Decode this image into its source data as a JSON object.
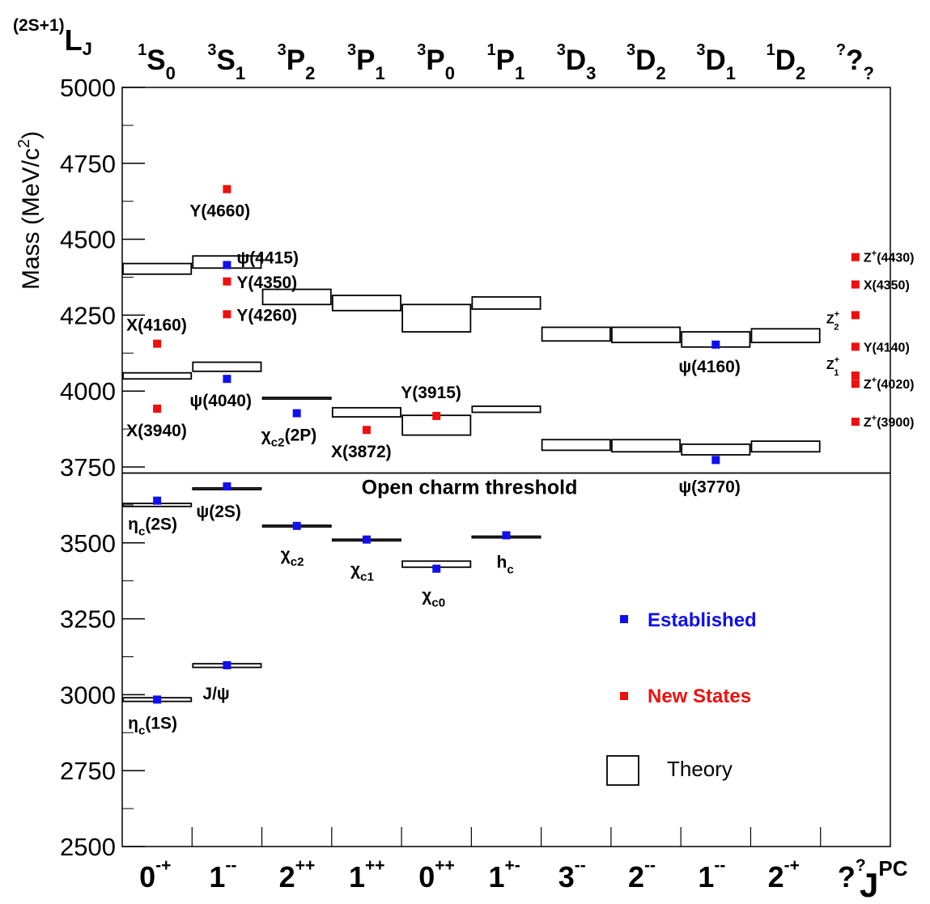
{
  "chart_data": {
    "type": "scatter",
    "title": "",
    "ylabel_main": "Mass (MeV/c",
    "ylabel_sup": "2",
    "ylabel_end": ")",
    "ylim": [
      2500,
      5000
    ],
    "yticks": [
      "2500",
      "2750",
      "3000",
      "3250",
      "3500",
      "3750",
      "4000",
      "4250",
      "4500",
      "4750",
      "5000"
    ],
    "grid": false,
    "top_axis": {
      "label_prefix": "(2S+1)",
      "label_main": "L",
      "label_sub": "J",
      "columns": [
        {
          "sup": "1",
          "main": "S",
          "sub": "0"
        },
        {
          "sup": "3",
          "main": "S",
          "sub": "1"
        },
        {
          "sup": "3",
          "main": "P",
          "sub": "2"
        },
        {
          "sup": "3",
          "main": "P",
          "sub": "1"
        },
        {
          "sup": "3",
          "main": "P",
          "sub": "0"
        },
        {
          "sup": "1",
          "main": "P",
          "sub": "1"
        },
        {
          "sup": "3",
          "main": "D",
          "sub": "3"
        },
        {
          "sup": "3",
          "main": "D",
          "sub": "2"
        },
        {
          "sup": "3",
          "main": "D",
          "sub": "1"
        },
        {
          "sup": "1",
          "main": "D",
          "sub": "2"
        },
        {
          "sup": "?",
          "main": "?",
          "sub": "?"
        }
      ]
    },
    "bottom_axis": {
      "label_main": "J",
      "label_sup": "PC",
      "columns": [
        {
          "main": "0",
          "sup": "-+"
        },
        {
          "main": "1",
          "sup": "--"
        },
        {
          "main": "2",
          "sup": "++"
        },
        {
          "main": "1",
          "sup": "++"
        },
        {
          "main": "0",
          "sup": "++"
        },
        {
          "main": "1",
          "sup": "+-"
        },
        {
          "main": "3",
          "sup": "--"
        },
        {
          "main": "2",
          "sup": "--"
        },
        {
          "main": "1",
          "sup": "--"
        },
        {
          "main": "2",
          "sup": "-+"
        },
        {
          "main": "?",
          "sup": "?"
        }
      ]
    },
    "threshold": {
      "mass": 3730,
      "label": "Open charm threshold"
    },
    "theory_boxes": [
      {
        "col": 0,
        "lo": 4385,
        "hi": 4420
      },
      {
        "col": 0,
        "lo": 4040,
        "hi": 4060
      },
      {
        "col": 0,
        "lo": 3620,
        "hi": 3630
      },
      {
        "col": 0,
        "lo": 2978,
        "hi": 2990
      },
      {
        "col": 1,
        "lo": 4405,
        "hi": 4445
      },
      {
        "col": 1,
        "lo": 4065,
        "hi": 4095
      },
      {
        "col": 1,
        "lo": 3677,
        "hi": 3681
      },
      {
        "col": 1,
        "lo": 3090,
        "hi": 3102
      },
      {
        "col": 2,
        "lo": 4285,
        "hi": 4335
      },
      {
        "col": 2,
        "lo": 3975,
        "hi": 3979
      },
      {
        "col": 2,
        "lo": 3554,
        "hi": 3558
      },
      {
        "col": 3,
        "lo": 4265,
        "hi": 4315
      },
      {
        "col": 3,
        "lo": 3915,
        "hi": 3945
      },
      {
        "col": 3,
        "lo": 3508,
        "hi": 3512
      },
      {
        "col": 4,
        "lo": 4195,
        "hi": 4285
      },
      {
        "col": 4,
        "lo": 3855,
        "hi": 3920
      },
      {
        "col": 4,
        "lo": 3420,
        "hi": 3440
      },
      {
        "col": 5,
        "lo": 4270,
        "hi": 4310
      },
      {
        "col": 5,
        "lo": 3930,
        "hi": 3950
      },
      {
        "col": 5,
        "lo": 3518,
        "hi": 3522
      },
      {
        "col": 6,
        "lo": 4165,
        "hi": 4210
      },
      {
        "col": 6,
        "lo": 3805,
        "hi": 3840
      },
      {
        "col": 7,
        "lo": 4160,
        "hi": 4210
      },
      {
        "col": 7,
        "lo": 3800,
        "hi": 3840
      },
      {
        "col": 8,
        "lo": 4145,
        "hi": 4195
      },
      {
        "col": 8,
        "lo": 3790,
        "hi": 3825
      },
      {
        "col": 9,
        "lo": 4160,
        "hi": 4205
      },
      {
        "col": 9,
        "lo": 3800,
        "hi": 3835
      }
    ],
    "series": [
      {
        "name": "Established",
        "color": "#1010ee",
        "points": [
          {
            "col": 0,
            "mass": 3639,
            "label": "η_c(2S)"
          },
          {
            "col": 0,
            "mass": 2984,
            "label": "η_c(1S)"
          },
          {
            "col": 1,
            "mass": 4415,
            "label": "ψ(4415)"
          },
          {
            "col": 1,
            "mass": 4040,
            "label": "ψ(4040)"
          },
          {
            "col": 1,
            "mass": 3686,
            "label": "ψ(2S)"
          },
          {
            "col": 1,
            "mass": 3097,
            "label": "J/ψ"
          },
          {
            "col": 2,
            "mass": 3927,
            "label": "χ_c2(2P)"
          },
          {
            "col": 2,
            "mass": 3556,
            "label": "χ_c2"
          },
          {
            "col": 3,
            "mass": 3511,
            "label": "χ_c1"
          },
          {
            "col": 4,
            "mass": 3415,
            "label": "χ_c0"
          },
          {
            "col": 5,
            "mass": 3525,
            "label": "h_c"
          },
          {
            "col": 8,
            "mass": 4153,
            "label": "ψ(4160)"
          },
          {
            "col": 8,
            "mass": 3773,
            "label": "ψ(3770)"
          }
        ]
      },
      {
        "name": "New States",
        "color": "#ee1010",
        "points": [
          {
            "col": 0,
            "mass": 4156,
            "label": "X(4160)"
          },
          {
            "col": 0,
            "mass": 3942,
            "label": "X(3940)"
          },
          {
            "col": 1,
            "mass": 4665,
            "label": "Y(4660)"
          },
          {
            "col": 1,
            "mass": 4361,
            "label": "Y(4350)"
          },
          {
            "col": 1,
            "mass": 4253,
            "label": "Y(4260)"
          },
          {
            "col": 3,
            "mass": 3872,
            "label": "X(3872)"
          },
          {
            "col": 4,
            "mass": 3918,
            "label": "Y(3915)"
          },
          {
            "col": 10,
            "mass": 4441,
            "label": "Z+(4430)"
          },
          {
            "col": 10,
            "mass": 4351,
            "label": "X(4350)"
          },
          {
            "col": 10,
            "mass": 4250,
            "label": "Z2+"
          },
          {
            "col": 10,
            "mass": 4146,
            "label": "Y(4140)"
          },
          {
            "col": 10,
            "mass": 4051,
            "label": "Z1+"
          },
          {
            "col": 10,
            "mass": 4024,
            "label": "Z+(4020)"
          },
          {
            "col": 10,
            "mass": 3899,
            "label": "Z+(3900)"
          }
        ]
      }
    ],
    "legend": {
      "placement": "bottom-right",
      "established": "Established",
      "new_states": "New States",
      "theory": "Theory"
    },
    "colors": {
      "established": "#1010ee",
      "new": "#ee1010",
      "axis": "#000000"
    }
  }
}
